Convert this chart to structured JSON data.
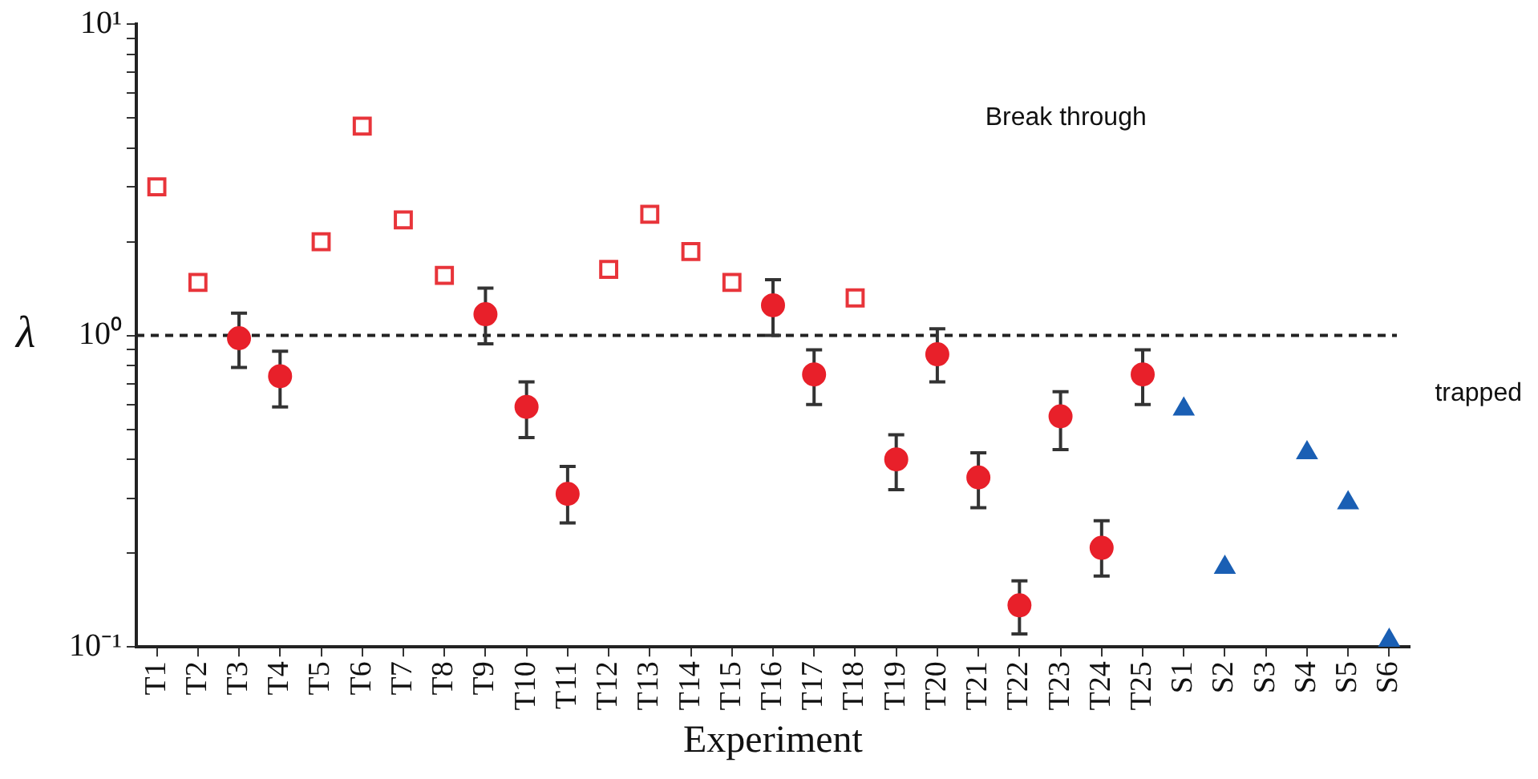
{
  "chart_data": {
    "type": "scatter",
    "xlabel": "Experiment",
    "ylabel": "λ",
    "categories": [
      "T1",
      "T2",
      "T3",
      "T4",
      "T5",
      "T6",
      "T7",
      "T8",
      "T9",
      "T10",
      "T11",
      "T12",
      "T13",
      "T14",
      "T15",
      "T16",
      "T17",
      "T18",
      "T19",
      "T20",
      "T21",
      "T22",
      "T23",
      "T24",
      "T25",
      "S1",
      "S2",
      "S3",
      "S4",
      "S5",
      "S6"
    ],
    "series": [
      {
        "marker": "square",
        "color": "#e8343a",
        "values": [
          3.0,
          1.48,
          null,
          null,
          2.0,
          4.7,
          2.35,
          1.56,
          null,
          null,
          null,
          1.63,
          2.45,
          1.86,
          1.48,
          null,
          null,
          1.32,
          null,
          null,
          null,
          null,
          null,
          null,
          null,
          null,
          null,
          null,
          null,
          null,
          null
        ]
      },
      {
        "marker": "circle",
        "color": "#e8202a",
        "values": [
          null,
          null,
          0.98,
          0.74,
          null,
          null,
          null,
          null,
          1.17,
          0.59,
          0.31,
          null,
          null,
          null,
          null,
          1.25,
          0.75,
          null,
          0.4,
          0.87,
          0.35,
          0.136,
          0.55,
          0.208,
          0.75,
          null,
          null,
          null,
          null,
          null,
          null
        ],
        "errors": [
          null,
          null,
          [
            0.79,
            1.18
          ],
          [
            0.59,
            0.89
          ],
          null,
          null,
          null,
          null,
          [
            0.94,
            1.42
          ],
          [
            0.47,
            0.71
          ],
          [
            0.25,
            0.38
          ],
          null,
          null,
          null,
          null,
          [
            1.0,
            1.51
          ],
          [
            0.6,
            0.9
          ],
          null,
          [
            0.32,
            0.48
          ],
          [
            0.71,
            1.05
          ],
          [
            0.28,
            0.42
          ],
          [
            0.11,
            0.163
          ],
          [
            0.43,
            0.66
          ],
          [
            0.169,
            0.254
          ],
          [
            0.6,
            0.9
          ],
          null,
          null,
          null,
          null,
          null,
          null
        ]
      },
      {
        "marker": "triangle",
        "color": "#1a5fb4",
        "values": [
          null,
          null,
          null,
          null,
          null,
          null,
          null,
          null,
          null,
          null,
          null,
          null,
          null,
          null,
          null,
          null,
          null,
          null,
          null,
          null,
          null,
          null,
          null,
          null,
          null,
          0.58,
          0.18,
          null,
          0.42,
          0.29,
          0.105
        ]
      }
    ],
    "log": "y",
    "ylim": [
      0.1,
      10
    ],
    "yticks": [
      {
        "value": 0.1,
        "label": "10⁻¹"
      },
      {
        "value": 0.2,
        "label": null
      },
      {
        "value": 0.3,
        "label": null
      },
      {
        "value": 0.4,
        "label": null
      },
      {
        "value": 0.5,
        "label": null
      },
      {
        "value": 0.6,
        "label": null
      },
      {
        "value": 0.7,
        "label": null
      },
      {
        "value": 0.8,
        "label": null
      },
      {
        "value": 0.9,
        "label": null
      },
      {
        "value": 1,
        "label": "10⁰"
      },
      {
        "value": 2,
        "label": null
      },
      {
        "value": 3,
        "label": null
      },
      {
        "value": 4,
        "label": null
      },
      {
        "value": 5,
        "label": null
      },
      {
        "value": 6,
        "label": null
      },
      {
        "value": 7,
        "label": null
      },
      {
        "value": 8,
        "label": null
      },
      {
        "value": 9,
        "label": null
      },
      {
        "value": 10,
        "label": "10¹"
      }
    ],
    "ref_lines": [
      {
        "axis": "y",
        "value": 1,
        "color": "#222222",
        "line_style": "dashed"
      }
    ],
    "annotations": [
      "Break through",
      "trapped"
    ],
    "grid": false,
    "legend": false
  }
}
